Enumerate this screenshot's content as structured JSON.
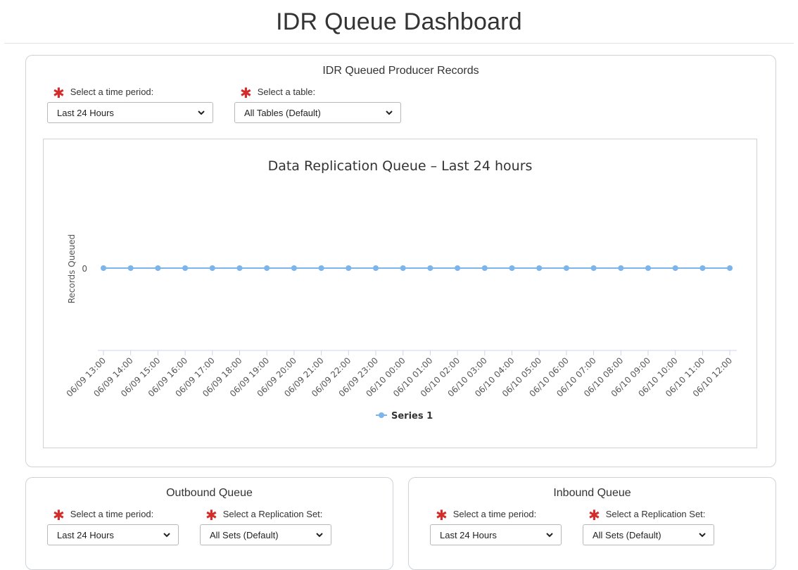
{
  "page": {
    "title": "IDR Queue Dashboard"
  },
  "producer_panel": {
    "title": "IDR Queued Producer Records",
    "time_label": "Select a time period:",
    "time_value": "Last 24 Hours",
    "table_label": "Select a table:",
    "table_value": "All Tables (Default)"
  },
  "outbound_panel": {
    "title": "Outbound Queue",
    "time_label": "Select a time period:",
    "time_value": "Last 24 Hours",
    "set_label": "Select a Replication Set:",
    "set_value": "All Sets (Default)"
  },
  "inbound_panel": {
    "title": "Inbound Queue",
    "time_label": "Select a time period:",
    "time_value": "Last 24 Hours",
    "set_label": "Select a Replication Set:",
    "set_value": "All Sets (Default)"
  },
  "colors": {
    "series": "#7cb5ec",
    "required": "#d42b2b",
    "border": "#cfd3d7"
  },
  "chart_data": {
    "type": "line",
    "title": "Data Replication Queue – Last 24 hours",
    "xlabel": "",
    "ylabel": "Records Queued",
    "x": [
      "06/09 13:00",
      "06/09 14:00",
      "06/09 15:00",
      "06/09 16:00",
      "06/09 17:00",
      "06/09 18:00",
      "06/09 19:00",
      "06/09 20:00",
      "06/09 21:00",
      "06/09 22:00",
      "06/09 23:00",
      "06/10 00:00",
      "06/10 01:00",
      "06/10 02:00",
      "06/10 03:00",
      "06/10 04:00",
      "06/10 05:00",
      "06/10 06:00",
      "06/10 07:00",
      "06/10 08:00",
      "06/10 09:00",
      "06/10 10:00",
      "06/10 11:00",
      "06/10 12:00"
    ],
    "y_ticks": [
      "0"
    ],
    "series": [
      {
        "name": "Series 1",
        "values": [
          0,
          0,
          0,
          0,
          0,
          0,
          0,
          0,
          0,
          0,
          0,
          0,
          0,
          0,
          0,
          0,
          0,
          0,
          0,
          0,
          0,
          0,
          0,
          0
        ]
      }
    ],
    "legend": "bottom-center",
    "grid": false
  }
}
